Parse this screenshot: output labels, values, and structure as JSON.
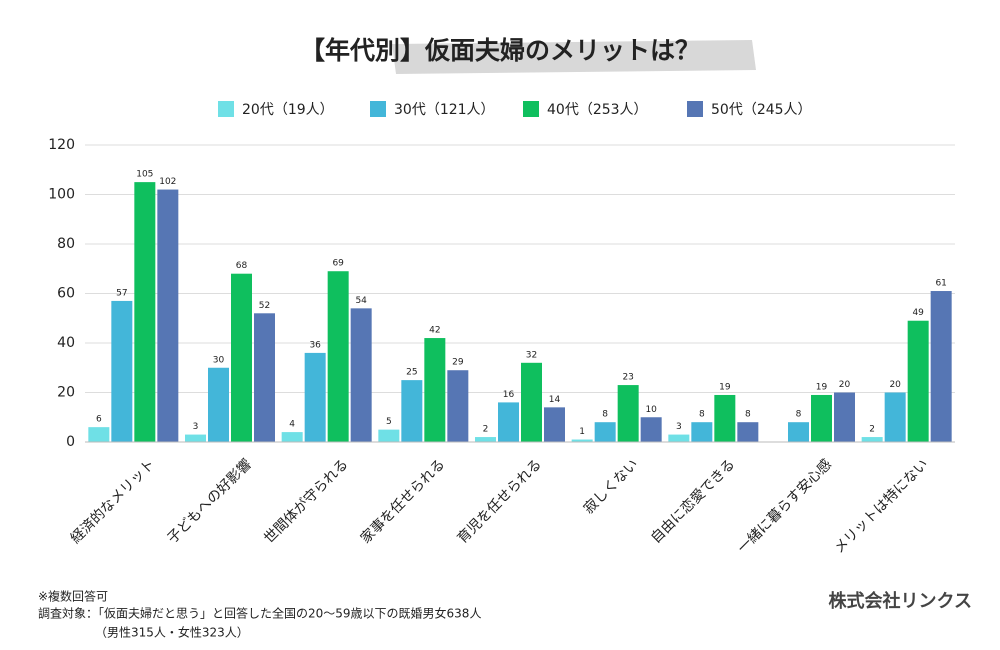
{
  "chart_data": {
    "type": "bar",
    "title": "【年代別】仮面夫婦のメリットは？",
    "categories": [
      "経済的なメリット",
      "子どもへの好影響",
      "世間体が守られる",
      "家事を任せられる",
      "育児を任せられる",
      "寂しくない",
      "自由に恋愛できる",
      "一緒に暮らす安心感",
      "メリットは特にない"
    ],
    "series": [
      {
        "name": "20代（19人）",
        "color": "#6fe0e6",
        "values": [
          6,
          3,
          4,
          5,
          2,
          1,
          3,
          null,
          2
        ]
      },
      {
        "name": "30代（121人）",
        "color": "#43b6d9",
        "values": [
          57,
          30,
          36,
          25,
          16,
          8,
          8,
          8,
          20
        ]
      },
      {
        "name": "40代（253人）",
        "color": "#0fbf5e",
        "values": [
          105,
          68,
          69,
          42,
          32,
          23,
          19,
          19,
          49
        ]
      },
      {
        "name": "50代（245人）",
        "color": "#5676b4",
        "values": [
          102,
          52,
          54,
          29,
          14,
          10,
          8,
          20,
          61
        ]
      }
    ],
    "ylim": [
      0,
      120
    ],
    "yticks": [
      0,
      20,
      40,
      60,
      80,
      100,
      120
    ],
    "grid": true,
    "legend": "top",
    "notes": [
      "※複数回答可",
      "調査対象：「仮面夫婦だと思う」と回答した全国の20〜59歳以下の既婚男女638人",
      "（男性315人・女性323人）"
    ],
    "source": "株式会社リンクス"
  }
}
